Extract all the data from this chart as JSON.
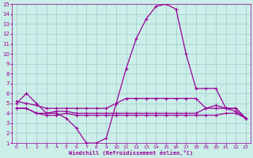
{
  "xlabel": "Windchill (Refroidissement éolien,°C)",
  "bg_color": "#cceee8",
  "grid_color": "#99cccc",
  "line_color": "#990099",
  "xlim": [
    -0.5,
    23.5
  ],
  "ylim": [
    1,
    15
  ],
  "yticks": [
    1,
    2,
    3,
    4,
    5,
    6,
    7,
    8,
    9,
    10,
    11,
    12,
    13,
    14,
    15
  ],
  "xticks": [
    0,
    1,
    2,
    3,
    4,
    5,
    6,
    7,
    8,
    9,
    10,
    11,
    12,
    13,
    14,
    15,
    16,
    17,
    18,
    19,
    20,
    21,
    22,
    23
  ],
  "series1_x": [
    0,
    1,
    2,
    3,
    4,
    5,
    6,
    7,
    8,
    9,
    10,
    11,
    12,
    13,
    14,
    15,
    16,
    17,
    18,
    19,
    20,
    21,
    22,
    23
  ],
  "series1_y": [
    5.0,
    6.0,
    5.0,
    4.0,
    4.0,
    3.5,
    2.5,
    1.0,
    1.0,
    1.5,
    5.0,
    8.5,
    11.5,
    13.5,
    14.8,
    15.0,
    14.5,
    10.0,
    6.5,
    6.5,
    6.5,
    4.5,
    4.5,
    3.5
  ],
  "series2_x": [
    0,
    1,
    2,
    3,
    4,
    5,
    6,
    7,
    8,
    9,
    10,
    11,
    12,
    13,
    14,
    15,
    16,
    17,
    18,
    19,
    20,
    21,
    22,
    23
  ],
  "series2_y": [
    5.2,
    5.0,
    4.8,
    4.5,
    4.5,
    4.5,
    4.5,
    4.5,
    4.5,
    4.5,
    5.0,
    5.5,
    5.5,
    5.5,
    5.5,
    5.5,
    5.5,
    5.5,
    5.5,
    4.5,
    4.5,
    4.5,
    4.5,
    3.5
  ],
  "series3_x": [
    0,
    1,
    2,
    3,
    4,
    5,
    6,
    7,
    8,
    9,
    10,
    11,
    12,
    13,
    14,
    15,
    16,
    17,
    18,
    19,
    20,
    21,
    22,
    23
  ],
  "series3_y": [
    4.5,
    4.5,
    4.0,
    4.0,
    4.2,
    4.2,
    4.0,
    4.0,
    4.0,
    4.0,
    4.0,
    4.0,
    4.0,
    4.0,
    4.0,
    4.0,
    4.0,
    4.0,
    4.0,
    4.5,
    4.8,
    4.5,
    4.2,
    3.5
  ],
  "series4_x": [
    0,
    1,
    2,
    3,
    4,
    5,
    6,
    7,
    8,
    9,
    10,
    11,
    12,
    13,
    14,
    15,
    16,
    17,
    18,
    19,
    20,
    21,
    22,
    23
  ],
  "series4_y": [
    4.5,
    4.5,
    4.0,
    3.8,
    3.8,
    4.0,
    3.8,
    3.8,
    3.8,
    3.8,
    3.8,
    3.8,
    3.8,
    3.8,
    3.8,
    3.8,
    3.8,
    3.8,
    3.8,
    3.8,
    3.8,
    4.0,
    4.0,
    3.5
  ]
}
